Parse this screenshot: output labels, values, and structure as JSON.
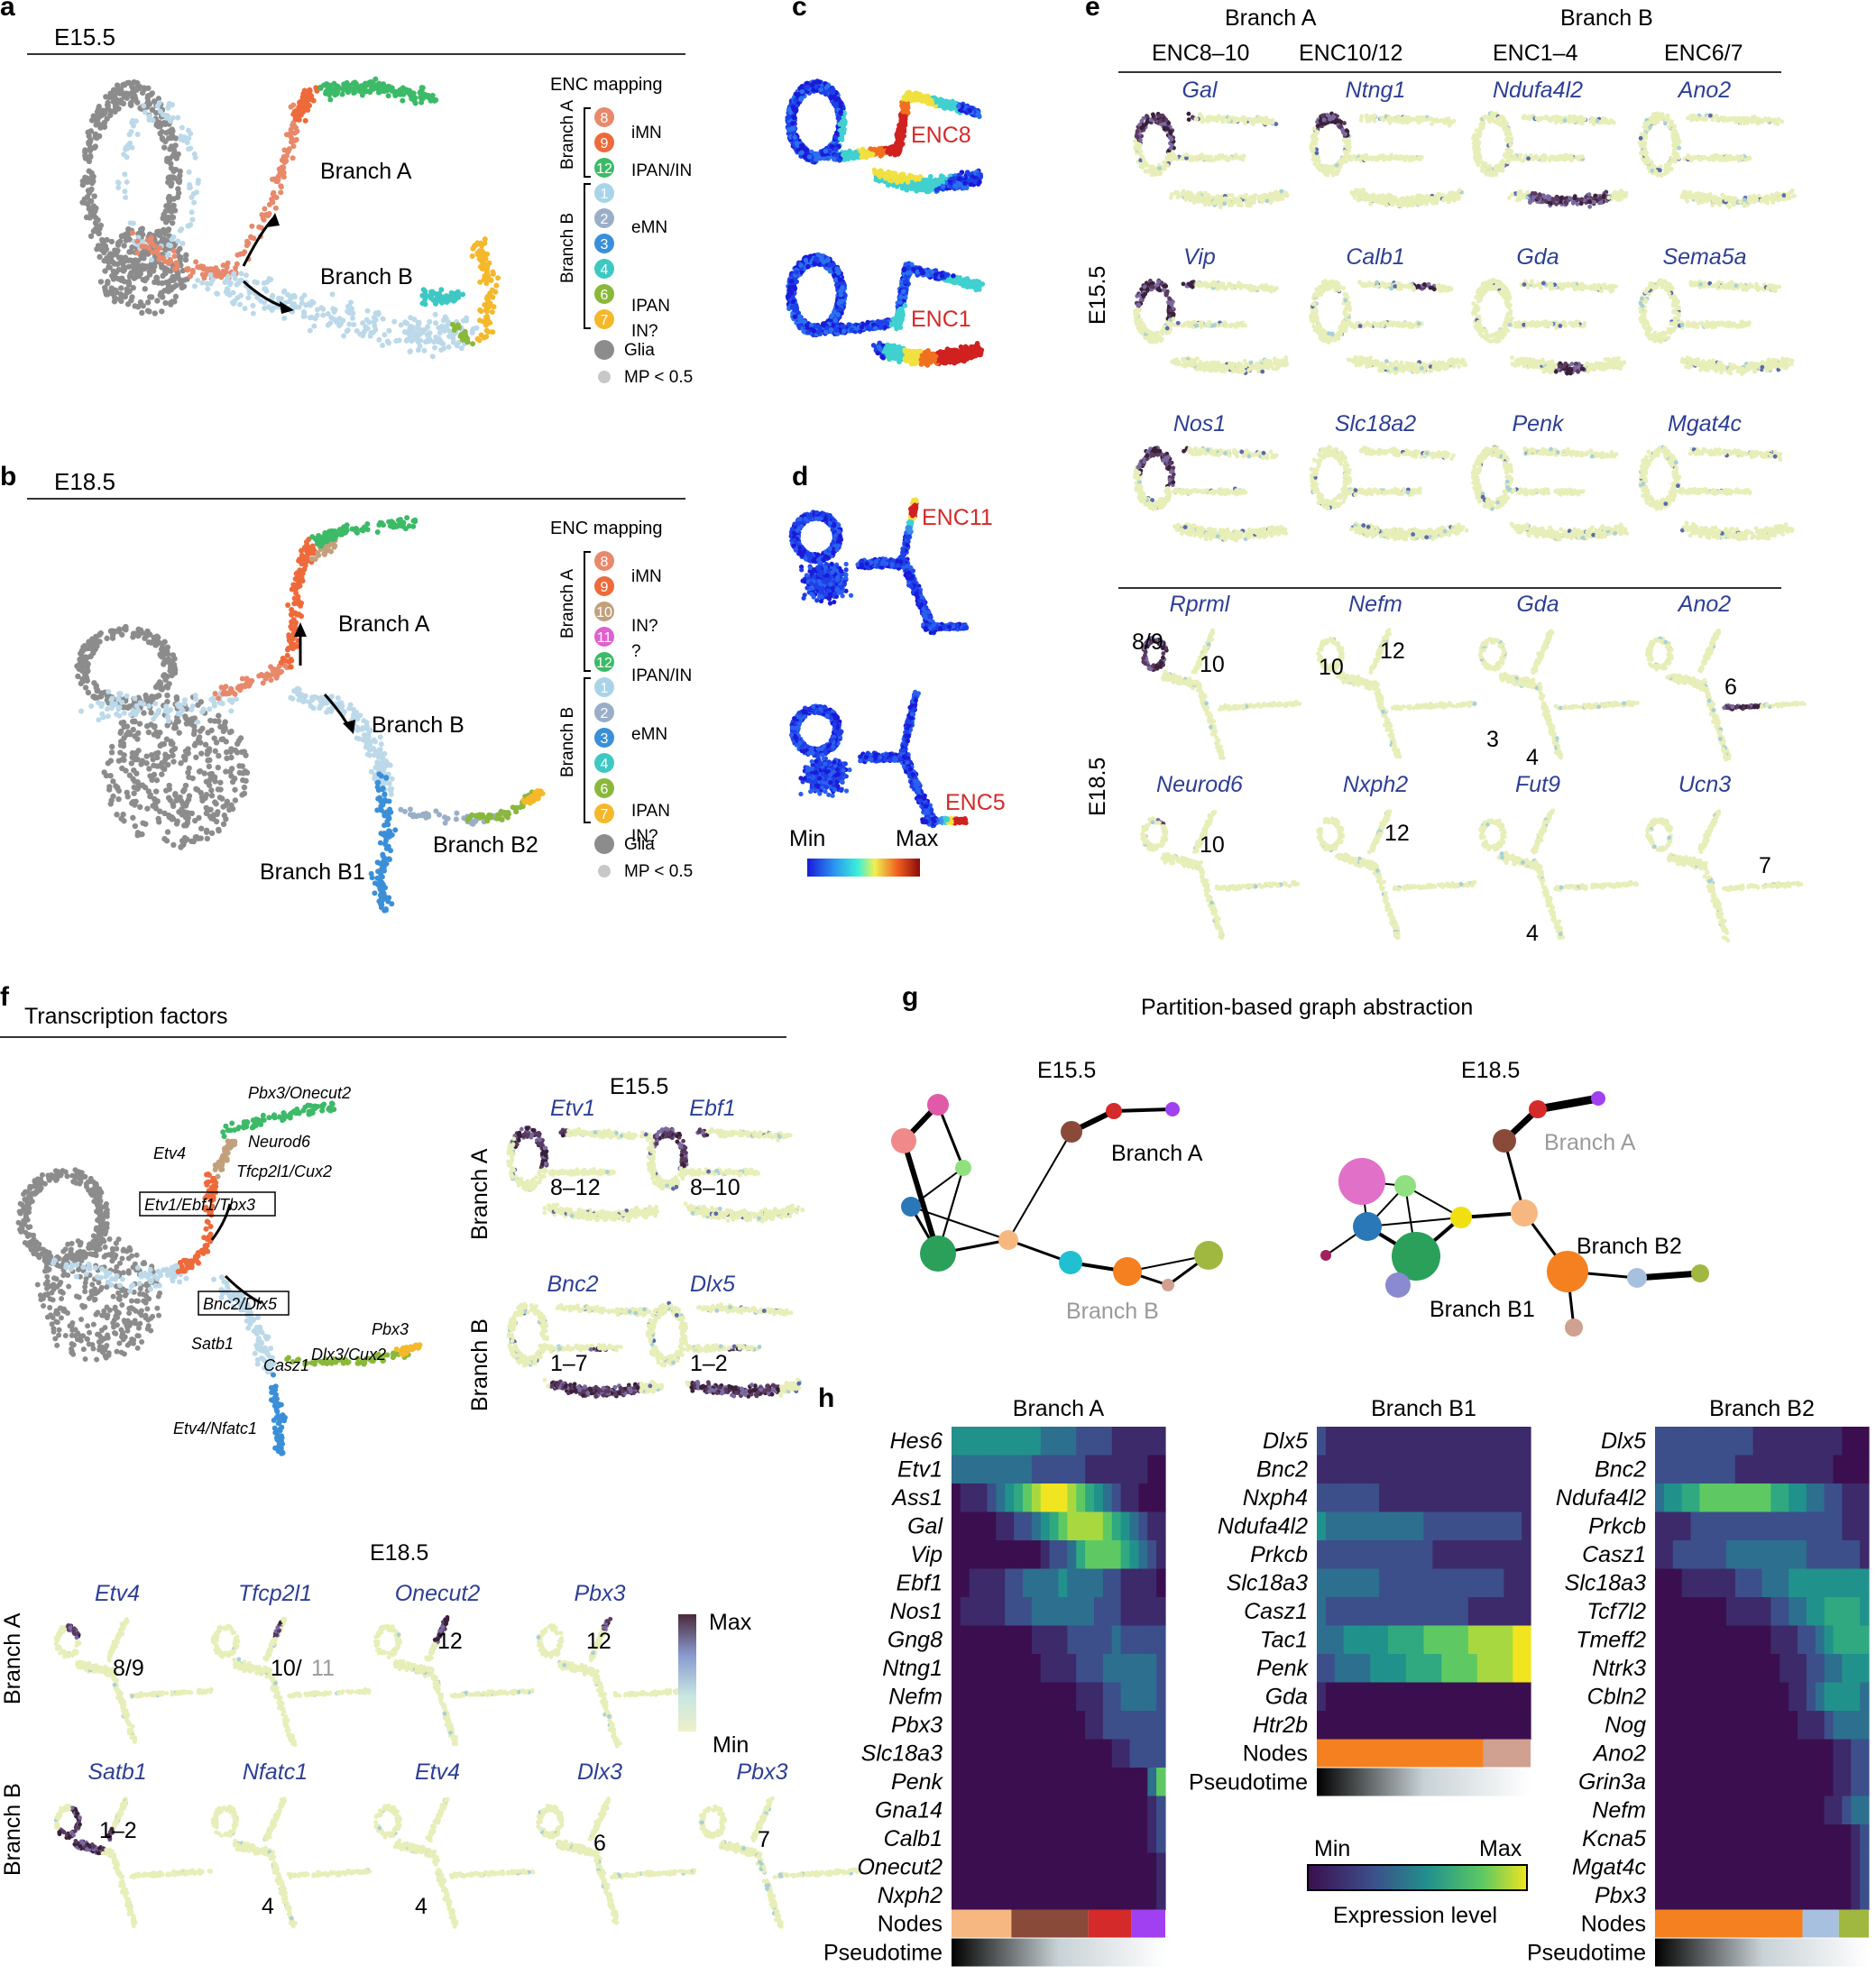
{
  "panels": {
    "a": {
      "letter": "a",
      "stage": "E15.5",
      "branch_labels": [
        "Branch A",
        "Branch B"
      ]
    },
    "b": {
      "letter": "b",
      "stage": "E18.5",
      "branch_labels": [
        "Branch A",
        "Branch B",
        "Branch B1",
        "Branch B2"
      ]
    },
    "c": {
      "letter": "c",
      "labels": [
        "ENC8",
        "ENC1"
      ]
    },
    "d": {
      "letter": "d",
      "labels": [
        "ENC11",
        "ENC5"
      ],
      "scale_min": "Min",
      "scale_max": "Max"
    },
    "e": {
      "letter": "e",
      "branch_a": "Branch A",
      "branch_b": "Branch B",
      "columns": [
        "ENC8–10",
        "ENC10/12",
        "ENC1–4",
        "ENC6/7"
      ],
      "row_e155": "E15.5",
      "row_e185": "E18.5",
      "genes_e155": [
        [
          "Gal",
          "Ntng1",
          "Ndufa4l2",
          "Ano2"
        ],
        [
          "Vip",
          "Calb1",
          "Gda",
          "Sema5a"
        ],
        [
          "Nos1",
          "Slc18a2",
          "Penk",
          "Mgat4c"
        ]
      ],
      "genes_e185": [
        [
          "Rprml",
          "Nefm",
          "Gda",
          "Ano2"
        ],
        [
          "Neurod6",
          "Nxph2",
          "Fut9",
          "Ucn3"
        ]
      ],
      "annots_e185": [
        [
          "8/9",
          "10"
        ],
        [
          "10",
          "12"
        ],
        [
          "3",
          "4"
        ],
        [
          "6"
        ],
        [
          "10"
        ],
        [
          "12"
        ],
        [
          "4"
        ],
        [
          "7"
        ]
      ]
    },
    "f": {
      "letter": "f",
      "title": "Transcription factors",
      "tf_labels": [
        "Pbx3/Onecut2",
        "Neurod6",
        "Etv4",
        "Tfcp2l1/Cux2",
        "Etv1/Ebf1/Tbx3",
        "Bnc2/Dlx5",
        "Satb1",
        "Casz1",
        "Dlx3/Cux2",
        "Pbx3",
        "Etv4/Nfatc1"
      ],
      "e155_title": "E15.5",
      "branch_a": "Branch A",
      "branch_b": "Branch B",
      "e155_genes": [
        "Etv1",
        "Ebf1",
        "Bnc2",
        "Dlx5"
      ],
      "e155_ranges": [
        "8–12",
        "8–10",
        "1–7",
        "1–2"
      ],
      "e185_title": "E18.5",
      "e185_a_genes": [
        "Etv4",
        "Tfcp2l1",
        "Onecut2",
        "Pbx3"
      ],
      "e185_a_annots": [
        "8/9",
        "10/",
        "11",
        "12",
        "12"
      ],
      "e185_b_genes": [
        "Satb1",
        "Nfatc1",
        "Etv4",
        "Dlx3",
        "Pbx3"
      ],
      "e185_b_annots": [
        "1–2",
        "4",
        "4",
        "6",
        "7"
      ],
      "scale_max": "Max",
      "scale_min": "Min"
    },
    "g": {
      "letter": "g",
      "title": "Partition-based graph abstraction",
      "e155": "E15.5",
      "e185": "E18.5",
      "labels": [
        "Branch A",
        "Branch B",
        "Branch A",
        "Branch B2",
        "Branch B1"
      ]
    },
    "h": {
      "letter": "h",
      "titles": [
        "Branch A",
        "Branch B1",
        "Branch B2"
      ],
      "genes_a": [
        "Hes6",
        "Etv1",
        "Ass1",
        "Gal",
        "Vip",
        "Ebf1",
        "Nos1",
        "Gng8",
        "Ntng1",
        "Nefm",
        "Pbx3",
        "Slc18a3",
        "Penk",
        "Gna14",
        "Calb1",
        "Onecut2",
        "Nxph2"
      ],
      "genes_b1": [
        "Dlx5",
        "Bnc2",
        "Nxph4",
        "Ndufa4l2",
        "Prkcb",
        "Slc18a3",
        "Casz1",
        "Tac1",
        "Penk",
        "Gda",
        "Htr2b"
      ],
      "genes_b2": [
        "Dlx5",
        "Bnc2",
        "Ndufa4l2",
        "Prkcb",
        "Casz1",
        "Slc18a3",
        "Tcf7l2",
        "Tmeff2",
        "Ntrk3",
        "Cbln2",
        "Nog",
        "Ano2",
        "Grin3a",
        "Nefm",
        "Kcna5",
        "Mgat4c",
        "Pbx3"
      ],
      "nodes": "Nodes",
      "pseudotime": "Pseudotime",
      "legend_min": "Min",
      "legend_max": "Max",
      "legend_title": "Expression level"
    }
  },
  "legend_ab": {
    "title": "ENC mapping",
    "branch_a": "Branch A",
    "branch_b": "Branch B",
    "a_items": [
      {
        "n": "8",
        "c": "#e8896b"
      },
      {
        "n": "9",
        "c": "#ee6a3a"
      },
      {
        "n": "12",
        "c": "#3cba68"
      }
    ],
    "a_text": [
      "iMN",
      "IPAN/IN"
    ],
    "b_items": [
      {
        "n": "8",
        "c": "#e8896b"
      },
      {
        "n": "9",
        "c": "#ee6a3a"
      },
      {
        "n": "10",
        "c": "#c2a07c"
      },
      {
        "n": "11",
        "c": "#e060d0"
      },
      {
        "n": "12",
        "c": "#3cba68"
      }
    ],
    "b_text": [
      "iMN",
      "IN?",
      "?",
      "IPAN/IN"
    ],
    "branchb_items": [
      {
        "n": "1",
        "c": "#a8d4ea"
      },
      {
        "n": "2",
        "c": "#9aaec8"
      },
      {
        "n": "3",
        "c": "#3a8fd8"
      },
      {
        "n": "4",
        "c": "#3ec8c4"
      },
      {
        "n": "6",
        "c": "#8ab83a"
      },
      {
        "n": "7",
        "c": "#f5b82a"
      }
    ],
    "branchb_text": [
      "eMN",
      "IPAN",
      "IN?"
    ],
    "glia": "Glia",
    "mp": "MP < 0.5"
  },
  "colors": {
    "glia": "#8c8c8c",
    "mp": "#c8c8c8",
    "gene": "#2d3f94",
    "red": "#d42a2a"
  }
}
